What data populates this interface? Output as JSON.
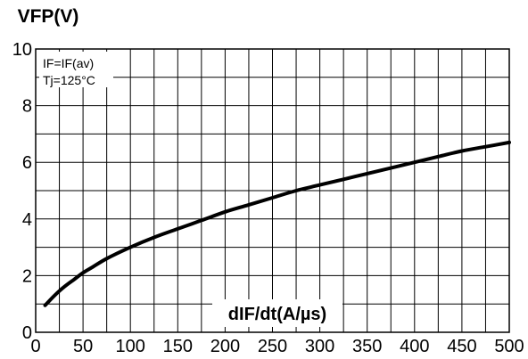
{
  "chart_data": {
    "type": "line",
    "ylabel": "VFP(V)",
    "xlabel": "dIF/dt(A/µs)",
    "annotations": [
      "IF=IF(av)",
      "Tj=125°C"
    ],
    "xlim": [
      0,
      500
    ],
    "ylim": [
      0,
      10
    ],
    "x_ticks": [
      "0",
      "50",
      "100",
      "150",
      "200",
      "250",
      "300",
      "350",
      "400",
      "450",
      "500"
    ],
    "y_ticks": [
      "0",
      "2",
      "4",
      "6",
      "8",
      "10"
    ],
    "x_grid_step": 25,
    "y_grid_step": 1,
    "grid": true,
    "line_color": "#000000",
    "series": [
      {
        "x": [
          10,
          20,
          30,
          40,
          50,
          60,
          75,
          100,
          125,
          150,
          175,
          200,
          225,
          250,
          275,
          300,
          325,
          350,
          375,
          400,
          425,
          450,
          475,
          500
        ],
        "y": [
          0.95,
          1.3,
          1.6,
          1.85,
          2.1,
          2.3,
          2.6,
          3.0,
          3.35,
          3.65,
          3.95,
          4.25,
          4.5,
          4.75,
          5.0,
          5.2,
          5.4,
          5.6,
          5.8,
          6.0,
          6.2,
          6.4,
          6.55,
          6.7
        ]
      }
    ]
  }
}
